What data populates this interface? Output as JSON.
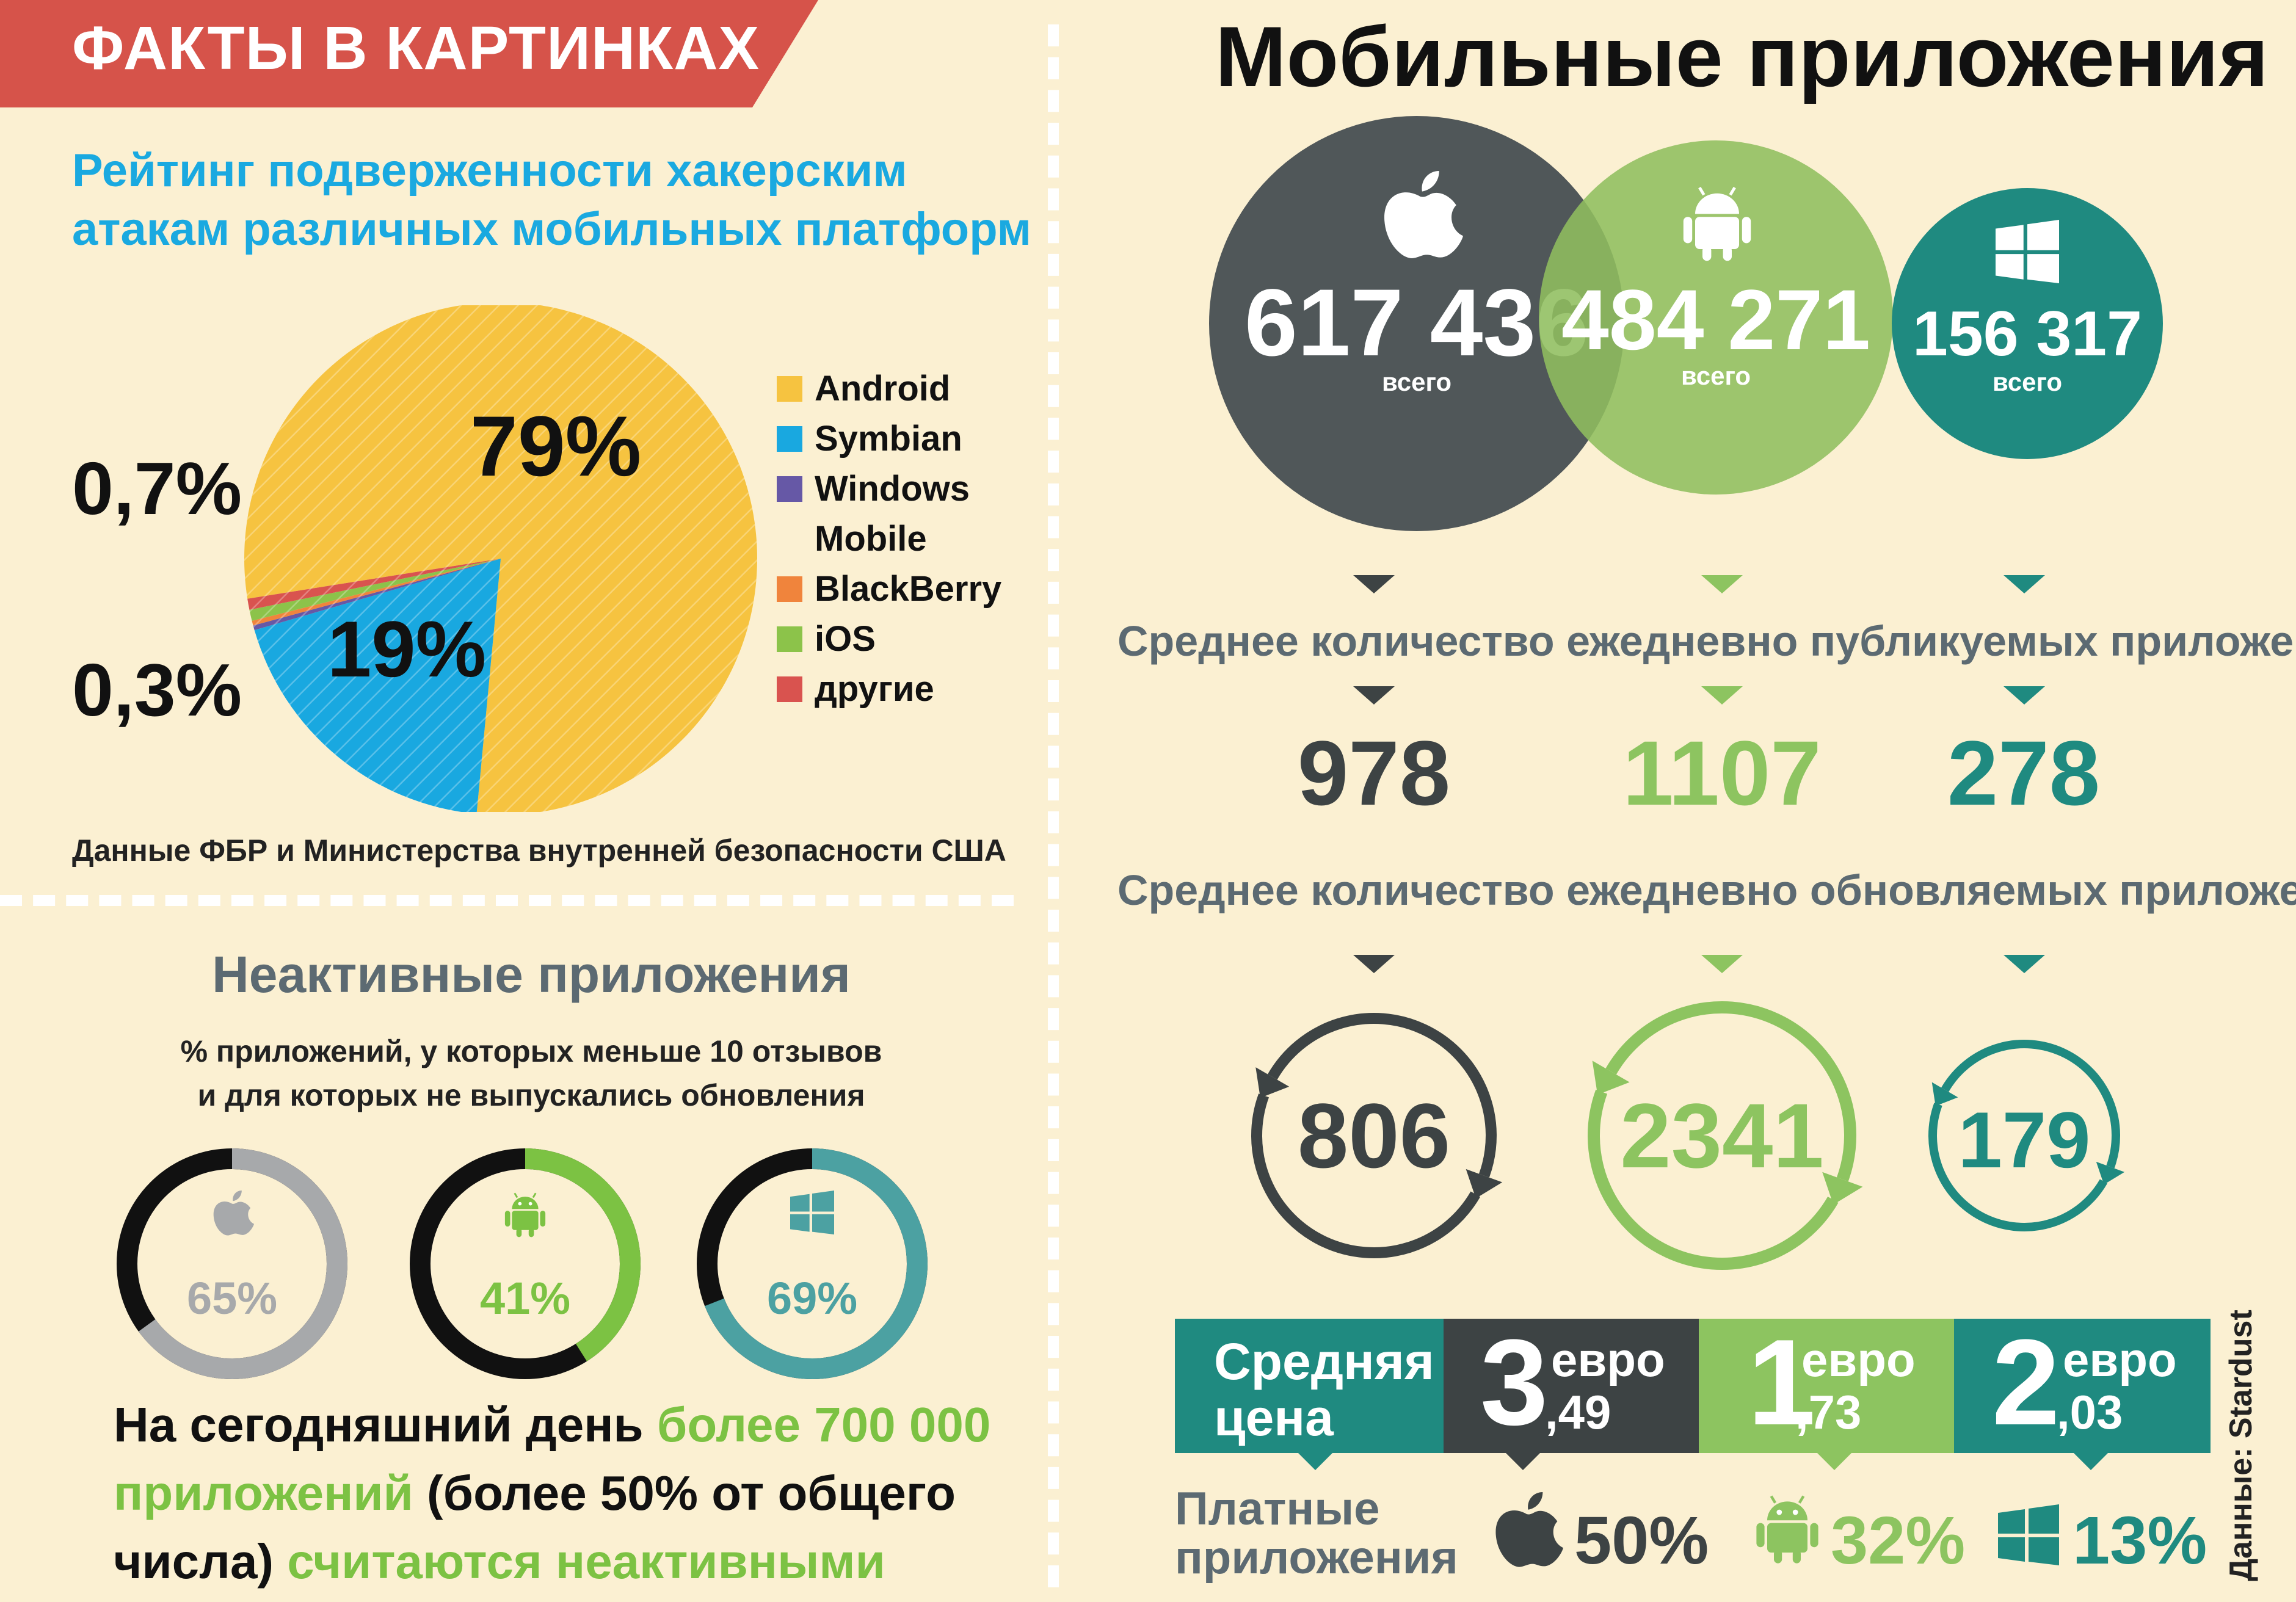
{
  "banner": {
    "text": "ФАКТЫ В КАРТИНКАХ",
    "color": "#d6534a"
  },
  "left_top": {
    "title_line1": "Рейтинг подверженности хакерским",
    "title_line2": "атакам различных мобильных платформ",
    "source": "Данные ФБР и Министерства внутренней безопасности США",
    "label_79": "79%",
    "label_19": "19%",
    "label_07": "0,7%",
    "label_03": "0,3%"
  },
  "left_bottom": {
    "title": "Неактивные приложения",
    "sub_line1": "% приложений, у которых меньше 10 отзывов",
    "sub_line2": "и для которых не выпускались обновления",
    "text_p1": "На сегодняшний день ",
    "text_g1": "более 700 000 приложений",
    "text_p2": " (более 50% от общего числа) ",
    "text_g2": "считаются неактивными",
    "rings": [
      {
        "platform": "apple",
        "label": "65%",
        "color": "#a7a9ab"
      },
      {
        "platform": "android",
        "label": "41%",
        "color": "#7cc243"
      },
      {
        "platform": "windows",
        "label": "69%",
        "color": "#4ca1a2"
      }
    ]
  },
  "right": {
    "title": "Мобильные приложения",
    "total_word": "всего",
    "totals": [
      {
        "platform": "apple",
        "value": "617 436",
        "color": "#505759"
      },
      {
        "platform": "android",
        "value": "484 271",
        "color": "#8fbe5e"
      },
      {
        "platform": "windows",
        "value": "156 317",
        "color": "#1f8a80"
      }
    ],
    "published_title": "Среднее количество ежедневно публикуемых приложений",
    "published": [
      "978",
      "1107",
      "278"
    ],
    "updated_title": "Среднее количество ежедневно обновляемых приложений",
    "updated": [
      "806",
      "2341",
      "179"
    ],
    "price_label_line1": "Средняя",
    "price_label_line2": "цена",
    "currency": "евро",
    "prices": [
      {
        "int": "3",
        "dec": ",49"
      },
      {
        "int": "1",
        "dec": ",73"
      },
      {
        "int": "2",
        "dec": ",03"
      }
    ],
    "paid_label_line1": "Платные",
    "paid_label_line2": "приложения",
    "paid": [
      "50%",
      "32%",
      "13%"
    ],
    "credit": "Данные: Stardust"
  },
  "colors": {
    "apple": "#3d4344",
    "android": "#8dc460",
    "windows": "#1f8a80",
    "slate": "#5c6a72"
  },
  "chart_data": [
    {
      "type": "pie",
      "title": "Рейтинг подверженности хакерским атакам различных мобильных платформ",
      "categories": [
        "Android",
        "Symbian",
        "Windows Mobile",
        "BlackBerry",
        "iOS",
        "другие"
      ],
      "values": [
        79,
        19,
        0.3,
        0.3,
        0.7,
        0.7
      ],
      "colors": [
        "#f6c340",
        "#19a8e0",
        "#6658a6",
        "#f0843c",
        "#8cc34a",
        "#d9534f"
      ],
      "legend": "right"
    },
    {
      "type": "bar",
      "categories": [
        "Apple",
        "Android",
        "Windows"
      ],
      "series": [
        {
          "name": "всего",
          "values": [
            617436,
            484271,
            156317
          ]
        },
        {
          "name": "Среднее количество ежедневно публикуемых приложений",
          "values": [
            978,
            1107,
            278
          ]
        },
        {
          "name": "Среднее количество ежедневно обновляемых приложений",
          "values": [
            806,
            2341,
            179
          ]
        },
        {
          "name": "Средняя цена",
          "values": [
            3.49,
            1.73,
            2.03
          ]
        },
        {
          "name": "Платные приложения",
          "values": [
            50,
            32,
            13
          ]
        },
        {
          "name": "Неактивные приложения",
          "values": [
            65,
            41,
            69
          ]
        }
      ]
    }
  ]
}
